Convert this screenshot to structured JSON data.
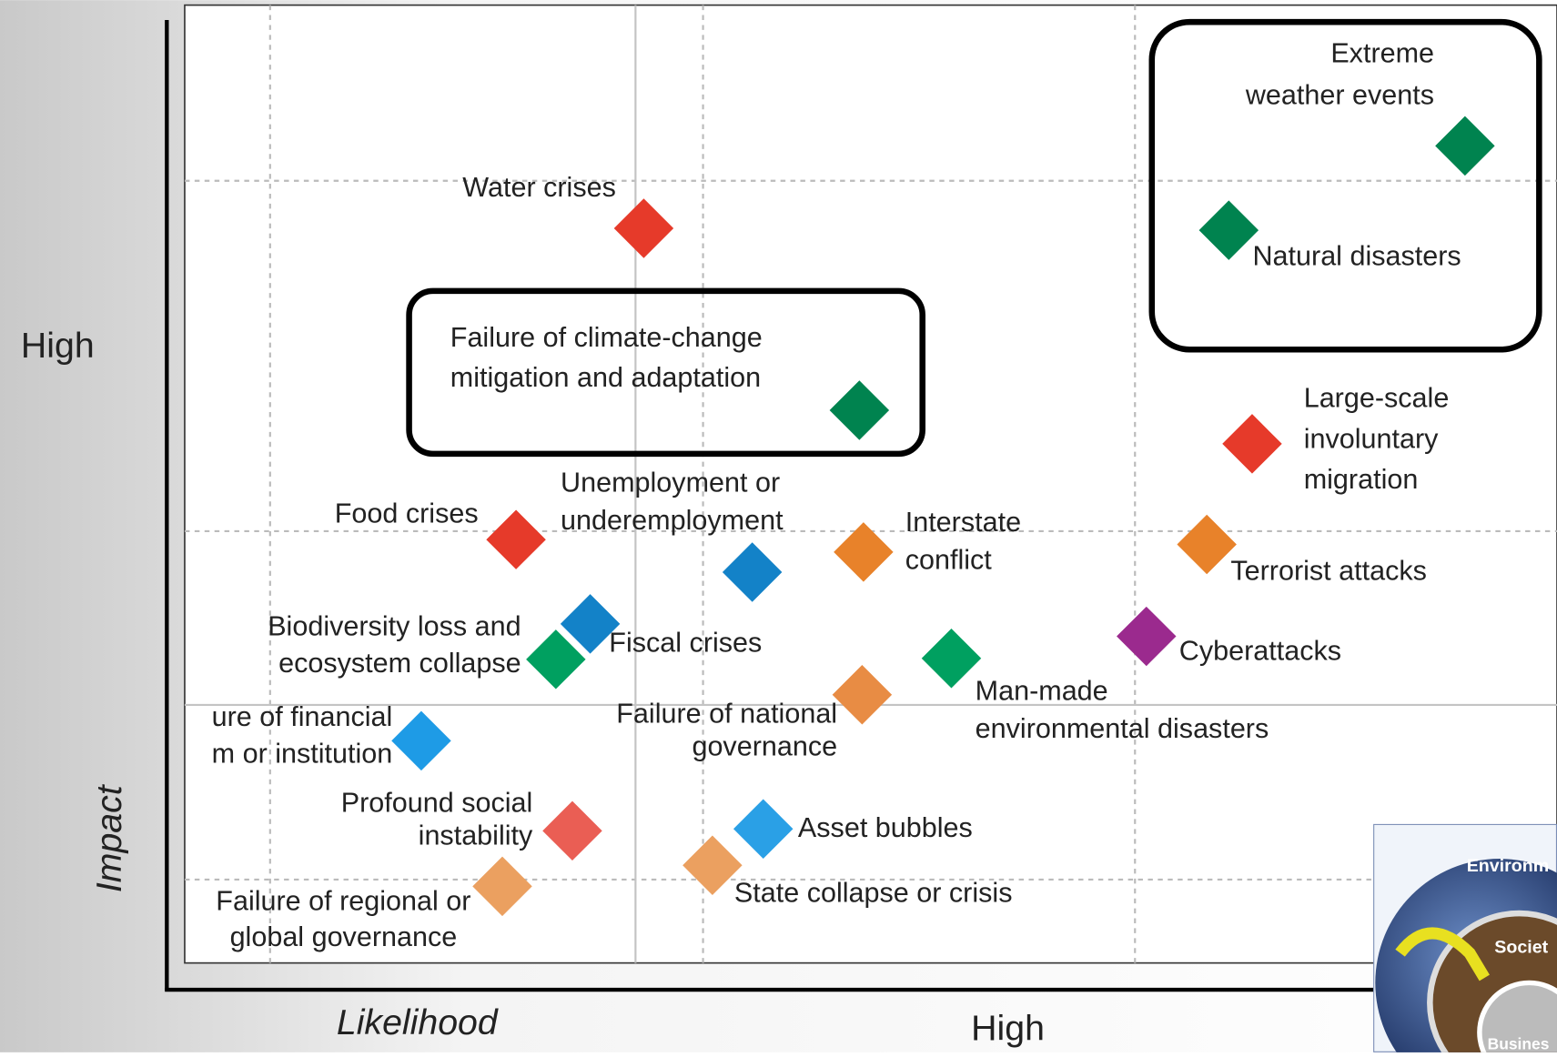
{
  "chart_data": {
    "type": "scatter",
    "xlabel": "Likelihood",
    "ylabel": "Impact",
    "x_high_label": "High",
    "y_high_label": "High",
    "xlim": [
      0,
      100
    ],
    "ylim": [
      0,
      100
    ],
    "labels": [
      [
        "Extreme",
        "weather events"
      ],
      [
        "Natural disasters"
      ],
      [
        "Water crises"
      ],
      [
        "Failure of climate-change",
        "mitigation and adaptation"
      ],
      [
        "Large-scale",
        "involuntary",
        "migration"
      ],
      [
        "Food crises"
      ],
      [
        "Unemployment or",
        "underemployment"
      ],
      [
        "Interstate",
        "conflict"
      ],
      [
        "Terrorist attacks"
      ],
      [
        "Fiscal crises"
      ],
      [
        "Biodiversity loss and",
        "ecosystem collapse"
      ],
      [
        "Man-made",
        "environmental disasters"
      ],
      [
        "Cyberattacks"
      ],
      [
        "Failure of national",
        "governance"
      ],
      [
        "ure of financial",
        "m or institution"
      ],
      [
        "Profound social",
        "instability"
      ],
      [
        "Asset bubbles"
      ],
      [
        "Failure of regional or",
        "global governance"
      ],
      [
        "State collapse or crisis"
      ]
    ],
    "x": [
      93.3,
      76.1,
      33.5,
      49.2,
      77.8,
      24.2,
      41.4,
      49.5,
      74.5,
      29.6,
      27.1,
      55.9,
      70.1,
      49.4,
      17.3,
      28.3,
      42.2,
      23.2,
      38.5
    ],
    "values": [
      85.3,
      76.5,
      76.7,
      57.7,
      54.2,
      44.2,
      40.8,
      42.9,
      43.7,
      35.4,
      31.7,
      31.8,
      34.1,
      28.0,
      23.2,
      13.8,
      14.0,
      8.0,
      10.2
    ],
    "colors": [
      "#00834f",
      "#00834f",
      "#e63a2a",
      "#00834f",
      "#e63a2a",
      "#e63a2a",
      "#1382c8",
      "#e8822a",
      "#e8822a",
      "#1382c8",
      "#00a060",
      "#00a060",
      "#9b2a8e",
      "#e88c44",
      "#1e9be6",
      "#ea5e54",
      "#2aa0e6",
      "#eba060",
      "#eba060"
    ]
  },
  "thumbnail": {
    "labels": [
      "Environm",
      "Societ",
      "Busines"
    ]
  }
}
